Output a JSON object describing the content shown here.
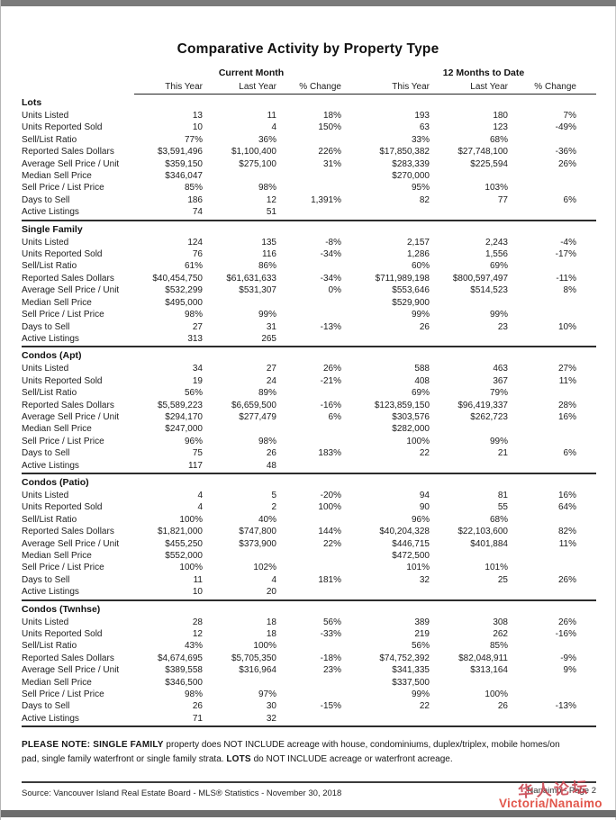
{
  "title": "Comparative Activity by Property Type",
  "table": {
    "column_groups": [
      "Current Month",
      "12 Months to Date"
    ],
    "sub_headers": [
      "This Year",
      "Last Year",
      "% Change",
      "This Year",
      "Last Year",
      "% Change"
    ],
    "row_labels": [
      "Units Listed",
      "Units Reported Sold",
      "Sell/List Ratio",
      "Reported Sales Dollars",
      "Average Sell Price / Unit",
      "Median Sell Price",
      "Sell Price / List Price",
      "Days to Sell",
      "Active Listings"
    ],
    "sections": [
      {
        "name": "Lots",
        "rows": [
          [
            "13",
            "11",
            "18%",
            "193",
            "180",
            "7%"
          ],
          [
            "10",
            "4",
            "150%",
            "63",
            "123",
            "-49%"
          ],
          [
            "77%",
            "36%",
            "",
            "33%",
            "68%",
            ""
          ],
          [
            "$3,591,496",
            "$1,100,400",
            "226%",
            "$17,850,382",
            "$27,748,100",
            "-36%"
          ],
          [
            "$359,150",
            "$275,100",
            "31%",
            "$283,339",
            "$225,594",
            "26%"
          ],
          [
            "$346,047",
            "",
            "",
            "$270,000",
            "",
            ""
          ],
          [
            "85%",
            "98%",
            "",
            "95%",
            "103%",
            ""
          ],
          [
            "186",
            "12",
            "1,391%",
            "82",
            "77",
            "6%"
          ],
          [
            "74",
            "51",
            "",
            "",
            "",
            ""
          ]
        ]
      },
      {
        "name": "Single Family",
        "rows": [
          [
            "124",
            "135",
            "-8%",
            "2,157",
            "2,243",
            "-4%"
          ],
          [
            "76",
            "116",
            "-34%",
            "1,286",
            "1,556",
            "-17%"
          ],
          [
            "61%",
            "86%",
            "",
            "60%",
            "69%",
            ""
          ],
          [
            "$40,454,750",
            "$61,631,633",
            "-34%",
            "$711,989,198",
            "$800,597,497",
            "-11%"
          ],
          [
            "$532,299",
            "$531,307",
            "0%",
            "$553,646",
            "$514,523",
            "8%"
          ],
          [
            "$495,000",
            "",
            "",
            "$529,900",
            "",
            ""
          ],
          [
            "98%",
            "99%",
            "",
            "99%",
            "99%",
            ""
          ],
          [
            "27",
            "31",
            "-13%",
            "26",
            "23",
            "10%"
          ],
          [
            "313",
            "265",
            "",
            "",
            "",
            ""
          ]
        ]
      },
      {
        "name": "Condos (Apt)",
        "rows": [
          [
            "34",
            "27",
            "26%",
            "588",
            "463",
            "27%"
          ],
          [
            "19",
            "24",
            "-21%",
            "408",
            "367",
            "11%"
          ],
          [
            "56%",
            "89%",
            "",
            "69%",
            "79%",
            ""
          ],
          [
            "$5,589,223",
            "$6,659,500",
            "-16%",
            "$123,859,150",
            "$96,419,337",
            "28%"
          ],
          [
            "$294,170",
            "$277,479",
            "6%",
            "$303,576",
            "$262,723",
            "16%"
          ],
          [
            "$247,000",
            "",
            "",
            "$282,000",
            "",
            ""
          ],
          [
            "96%",
            "98%",
            "",
            "100%",
            "99%",
            ""
          ],
          [
            "75",
            "26",
            "183%",
            "22",
            "21",
            "6%"
          ],
          [
            "117",
            "48",
            "",
            "",
            "",
            ""
          ]
        ]
      },
      {
        "name": "Condos (Patio)",
        "rows": [
          [
            "4",
            "5",
            "-20%",
            "94",
            "81",
            "16%"
          ],
          [
            "4",
            "2",
            "100%",
            "90",
            "55",
            "64%"
          ],
          [
            "100%",
            "40%",
            "",
            "96%",
            "68%",
            ""
          ],
          [
            "$1,821,000",
            "$747,800",
            "144%",
            "$40,204,328",
            "$22,103,600",
            "82%"
          ],
          [
            "$455,250",
            "$373,900",
            "22%",
            "$446,715",
            "$401,884",
            "11%"
          ],
          [
            "$552,000",
            "",
            "",
            "$472,500",
            "",
            ""
          ],
          [
            "100%",
            "102%",
            "",
            "101%",
            "101%",
            ""
          ],
          [
            "11",
            "4",
            "181%",
            "32",
            "25",
            "26%"
          ],
          [
            "10",
            "20",
            "",
            "",
            "",
            ""
          ]
        ]
      },
      {
        "name": "Condos (Twnhse)",
        "rows": [
          [
            "28",
            "18",
            "56%",
            "389",
            "308",
            "26%"
          ],
          [
            "12",
            "18",
            "-33%",
            "219",
            "262",
            "-16%"
          ],
          [
            "43%",
            "100%",
            "",
            "56%",
            "85%",
            ""
          ],
          [
            "$4,674,695",
            "$5,705,350",
            "-18%",
            "$74,752,392",
            "$82,048,911",
            "-9%"
          ],
          [
            "$389,558",
            "$316,964",
            "23%",
            "$341,335",
            "$313,164",
            "9%"
          ],
          [
            "$346,500",
            "",
            "",
            "$337,500",
            "",
            ""
          ],
          [
            "98%",
            "97%",
            "",
            "99%",
            "100%",
            ""
          ],
          [
            "26",
            "30",
            "-15%",
            "22",
            "26",
            "-13%"
          ],
          [
            "71",
            "32",
            "",
            "",
            "",
            ""
          ]
        ]
      }
    ]
  },
  "note": {
    "bold1": "PLEASE NOTE: SINGLE FAMILY",
    "text1": " property does NOT INCLUDE acreage with house, condominiums, duplex/triplex, mobile homes/on pad, single family waterfront or single family strata. ",
    "bold2": "LOTS",
    "text2": " do NOT INCLUDE acreage or waterfront acreage."
  },
  "footer": {
    "source": "Source: Vancouver Island Real Estate Board - MLS® Statistics - November 30, 2018",
    "page_label": "Nanaimo - Page 2"
  },
  "watermark": {
    "chinese": "华人论坛",
    "chinese_color": "#c8404c",
    "brand": "Victoria/Nanaimo",
    "brand_color": "#e2574c"
  }
}
